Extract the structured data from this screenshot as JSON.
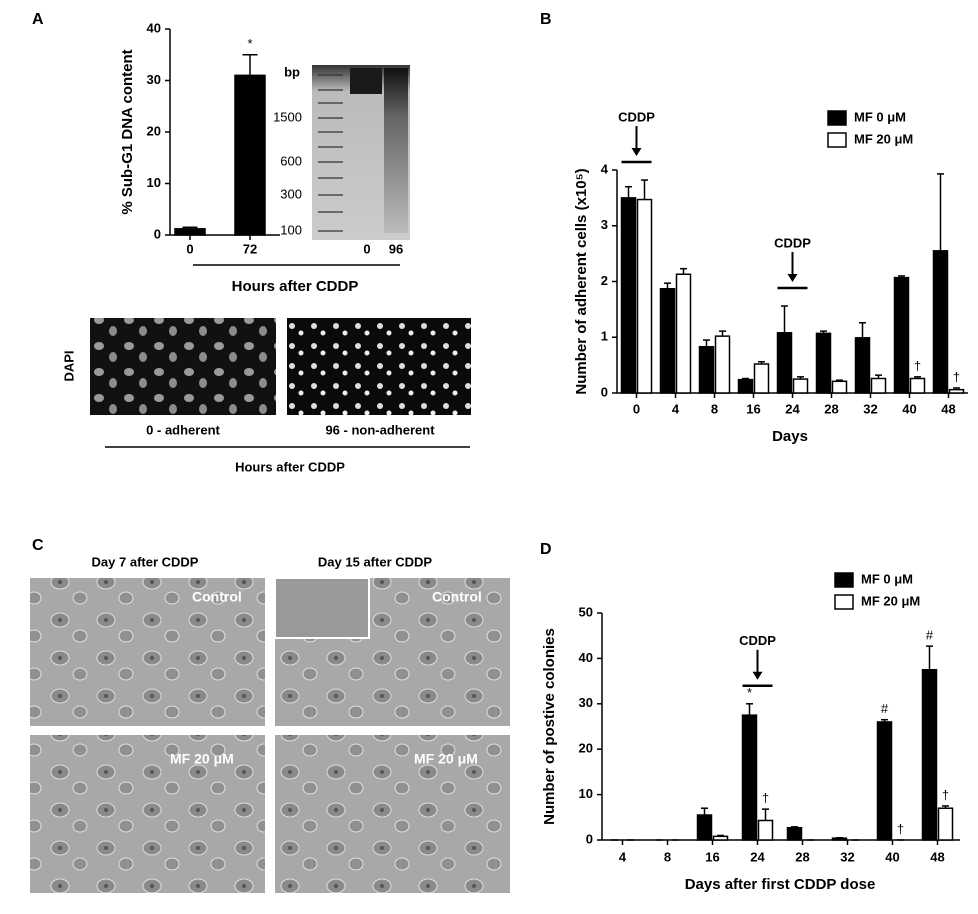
{
  "panels": [
    "A",
    "B",
    "C",
    "D"
  ],
  "chart_data": [
    {
      "type": "bar",
      "ylabel": "% Sub-G1 DNA content",
      "xlabel": "Hours after CDDP",
      "categories": [
        "0",
        "72"
      ],
      "values": [
        1.2,
        31
      ],
      "errors": [
        0.3,
        4
      ],
      "color": "#000000",
      "ylim": [
        0,
        40
      ],
      "yticks": [
        0,
        10,
        20,
        30,
        40
      ],
      "annotations": [
        {
          "text": "*",
          "x": "72"
        }
      ]
    },
    {
      "type": "bar",
      "ylabel": "Number of adherent cells (x10⁵)",
      "xlabel": "Days",
      "categories": [
        "0",
        "4",
        "8",
        "16",
        "24",
        "28",
        "32",
        "40",
        "48"
      ],
      "series": [
        {
          "name": "MF 0 μM",
          "color": "#000000",
          "values": [
            3.5,
            1.87,
            0.83,
            0.24,
            1.08,
            1.07,
            0.99,
            2.07,
            2.55
          ],
          "errors": [
            0.2,
            0.1,
            0.12,
            0.02,
            0.48,
            0.04,
            0.27,
            0.03,
            1.38
          ]
        },
        {
          "name": "MF 20 μM",
          "color": "#ffffff",
          "values": [
            3.47,
            2.13,
            1.02,
            0.52,
            0.25,
            0.21,
            0.26,
            0.26,
            0.06
          ],
          "errors": [
            0.35,
            0.1,
            0.09,
            0.04,
            0.04,
            0.02,
            0.06,
            0.03,
            0.03
          ]
        }
      ],
      "ylim": [
        0,
        4
      ],
      "yticks": [
        0,
        1,
        2,
        3,
        4
      ],
      "legend": "upper right",
      "annotations": [
        {
          "text": "CDDP",
          "x": "0",
          "style": "arrow"
        },
        {
          "text": "CDDP",
          "x": "24",
          "style": "arrow"
        },
        {
          "text": "†",
          "x": "40",
          "series": "MF 20 μM"
        },
        {
          "text": "†",
          "x": "48",
          "series": "MF 20 μM"
        }
      ]
    },
    {
      "type": "bar",
      "ylabel": "Number of postive colonies",
      "xlabel": "Days after first CDDP dose",
      "categories": [
        "4",
        "8",
        "16",
        "24",
        "28",
        "32",
        "40",
        "48"
      ],
      "series": [
        {
          "name": "MF 0 μM",
          "color": "#000000",
          "values": [
            0,
            0,
            5.5,
            27.5,
            2.7,
            0.4,
            26,
            37.5
          ],
          "errors": [
            0,
            0,
            1.5,
            2.5,
            0.2,
            0.1,
            0.5,
            5.2
          ]
        },
        {
          "name": "MF 20 μM",
          "color": "#ffffff",
          "values": [
            0,
            0,
            0.8,
            4.3,
            0,
            0,
            0,
            7
          ],
          "errors": [
            0,
            0,
            0.2,
            2.5,
            0,
            0,
            0,
            0.5
          ]
        }
      ],
      "ylim": [
        0,
        50
      ],
      "yticks": [
        0,
        10,
        20,
        30,
        40,
        50
      ],
      "legend": "upper right",
      "annotations": [
        {
          "text": "CDDP",
          "x": "24",
          "style": "arrow"
        },
        {
          "text": "*",
          "x": "24",
          "series": "MF 0 μM"
        },
        {
          "text": "†",
          "x": "24",
          "series": "MF 20 μM"
        },
        {
          "text": "#",
          "x": "40",
          "series": "MF 0 μM"
        },
        {
          "text": "†",
          "x": "40",
          "series": "MF 20 μM"
        },
        {
          "text": "#",
          "x": "48",
          "series": "MF 0 μM"
        },
        {
          "text": "†",
          "x": "48",
          "series": "MF 20 μM"
        }
      ]
    }
  ],
  "gel": {
    "unit": "bp",
    "markers": [
      "1500",
      "600",
      "300",
      "100"
    ],
    "lanes": [
      "0",
      "96"
    ]
  },
  "dapi": {
    "ylabel": "DAPI",
    "captions": [
      "0 - adherent",
      "96 - non-adherent"
    ],
    "xlabel": "Hours after CDDP"
  },
  "micrographs": {
    "columns": [
      "Day 7 after CDDP",
      "Day 15 after CDDP"
    ],
    "labels": [
      "Control",
      "Control",
      "MF 20 μM",
      "MF 20 μM"
    ]
  }
}
